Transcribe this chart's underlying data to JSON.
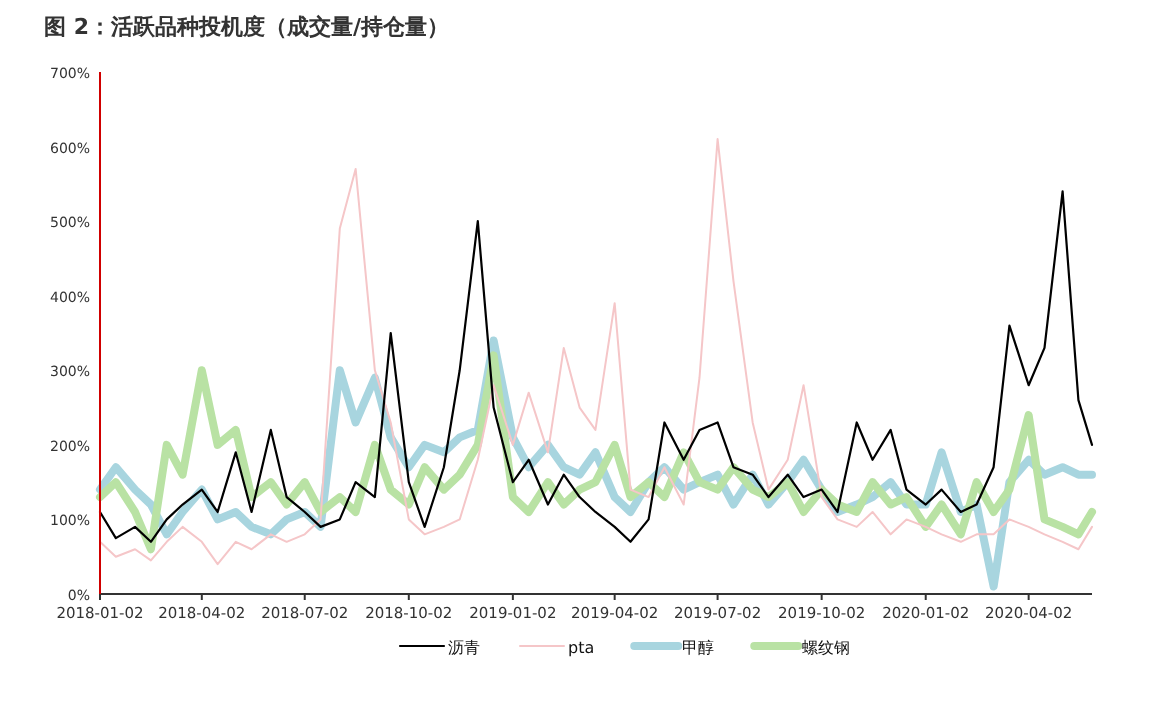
{
  "chart_data": {
    "type": "line",
    "title": "图 2：活跃品种投机度（成交量/持仓量）",
    "x": [
      "2018-01-02",
      "2018-01-16",
      "2018-02-02",
      "2018-02-16",
      "2018-03-02",
      "2018-03-16",
      "2018-04-02",
      "2018-04-16",
      "2018-05-02",
      "2018-05-16",
      "2018-06-02",
      "2018-06-16",
      "2018-07-02",
      "2018-07-16",
      "2018-08-02",
      "2018-08-16",
      "2018-09-02",
      "2018-09-16",
      "2018-10-02",
      "2018-10-16",
      "2018-11-02",
      "2018-11-16",
      "2018-12-02",
      "2018-12-16",
      "2019-01-02",
      "2019-01-16",
      "2019-02-02",
      "2019-02-16",
      "2019-03-02",
      "2019-03-16",
      "2019-04-02",
      "2019-04-16",
      "2019-05-02",
      "2019-05-16",
      "2019-06-02",
      "2019-06-16",
      "2019-07-02",
      "2019-07-16",
      "2019-08-02",
      "2019-08-16",
      "2019-09-02",
      "2019-09-16",
      "2019-10-02",
      "2019-10-16",
      "2019-11-02",
      "2019-11-16",
      "2019-12-02",
      "2019-12-16",
      "2020-01-02",
      "2020-01-16",
      "2020-02-02",
      "2020-02-16",
      "2020-03-02",
      "2020-03-16",
      "2020-04-02",
      "2020-04-16",
      "2020-05-02",
      "2020-05-16",
      "2020-05-28"
    ],
    "series": [
      {
        "name": "沥青",
        "color": "#000000",
        "values": [
          110,
          75,
          90,
          70,
          100,
          120,
          140,
          110,
          190,
          110,
          220,
          130,
          110,
          90,
          100,
          150,
          130,
          350,
          150,
          90,
          170,
          300,
          500,
          250,
          150,
          180,
          120,
          160,
          130,
          110,
          90,
          70,
          100,
          230,
          180,
          220,
          230,
          170,
          160,
          130,
          160,
          130,
          140,
          110,
          230,
          180,
          220,
          140,
          120,
          140,
          110,
          120,
          170,
          360,
          280,
          330,
          540,
          260,
          200
        ]
      },
      {
        "name": "pta",
        "color": "#f5c6c8",
        "values": [
          70,
          50,
          60,
          45,
          70,
          90,
          70,
          40,
          70,
          60,
          80,
          70,
          80,
          100,
          490,
          570,
          300,
          230,
          100,
          80,
          90,
          100,
          180,
          280,
          200,
          270,
          190,
          330,
          250,
          220,
          390,
          140,
          130,
          170,
          120,
          290,
          610,
          420,
          230,
          140,
          180,
          280,
          130,
          100,
          90,
          110,
          80,
          100,
          90,
          80,
          70,
          80,
          80,
          100,
          90,
          80,
          70,
          60,
          90
        ]
      },
      {
        "name": "甲醇",
        "color": "#a8d5df",
        "values": [
          140,
          170,
          140,
          120,
          80,
          110,
          140,
          100,
          110,
          90,
          80,
          100,
          110,
          90,
          300,
          230,
          290,
          210,
          170,
          200,
          190,
          210,
          220,
          340,
          210,
          170,
          200,
          170,
          160,
          190,
          130,
          110,
          150,
          170,
          140,
          150,
          160,
          120,
          160,
          120,
          150,
          180,
          140,
          110,
          120,
          130,
          150,
          120,
          120,
          190,
          110,
          120,
          10,
          150,
          180,
          160,
          170,
          160,
          160
        ]
      },
      {
        "name": "螺纹钢",
        "color": "#b9e2a4",
        "values": [
          130,
          150,
          110,
          60,
          200,
          160,
          300,
          200,
          220,
          130,
          150,
          120,
          150,
          110,
          130,
          110,
          200,
          140,
          120,
          170,
          140,
          160,
          200,
          320,
          130,
          110,
          150,
          120,
          140,
          150,
          200,
          130,
          150,
          130,
          190,
          150,
          140,
          170,
          140,
          130,
          150,
          110,
          140,
          120,
          110,
          150,
          120,
          130,
          90,
          120,
          80,
          150,
          110,
          140,
          240,
          100,
          90,
          80,
          110
        ]
      }
    ],
    "xlim": [
      "2018-01-02",
      "2020-05-28"
    ],
    "xticks": [
      {
        "value": "2018-01-02",
        "label": "2018-01-02"
      },
      {
        "value": "2018-04-02",
        "label": "2018-04-02"
      },
      {
        "value": "2018-07-02",
        "label": "2018-07-02"
      },
      {
        "value": "2018-10-02",
        "label": "2018-10-02"
      },
      {
        "value": "2019-01-02",
        "label": "2019-01-02"
      },
      {
        "value": "2019-04-02",
        "label": "2019-04-02"
      },
      {
        "value": "2019-07-02",
        "label": "2019-07-02"
      },
      {
        "value": "2019-10-02",
        "label": "2019-10-02"
      },
      {
        "value": "2020-01-02",
        "label": "2020-01-02"
      },
      {
        "value": "2020-04-02",
        "label": "2020-04-02"
      }
    ],
    "ylim": [
      0,
      700
    ],
    "yticks": [
      {
        "value": 0,
        "label": "0%"
      },
      {
        "value": 100,
        "label": "100%"
      },
      {
        "value": 200,
        "label": "200%"
      },
      {
        "value": 300,
        "label": "300%"
      },
      {
        "value": 400,
        "label": "400%"
      },
      {
        "value": 500,
        "label": "500%"
      },
      {
        "value": 600,
        "label": "600%"
      },
      {
        "value": 700,
        "label": "700%"
      }
    ],
    "legend": "bottom",
    "grid": false,
    "line_style": "solid"
  }
}
